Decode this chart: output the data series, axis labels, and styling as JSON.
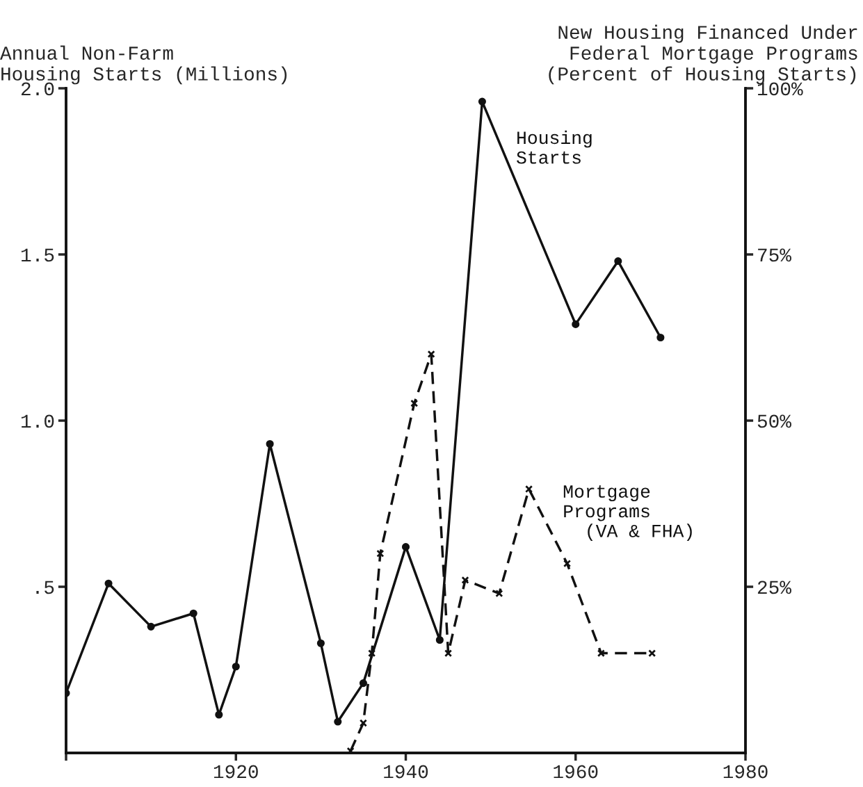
{
  "chart_data": {
    "type": "line",
    "ylabel": "Annual Non-Farm\nHousing Starts (Millions)",
    "y2label": "New Housing Financed Under\nFederal Mortgage Programs\n(Percent of Housing Starts)",
    "xlim": [
      1900,
      1980
    ],
    "xticks": [
      {
        "value": 1900,
        "label": null
      },
      1920,
      1940,
      1960,
      1980
    ],
    "ylim": [
      0,
      2.0
    ],
    "yticks": [
      {
        "value": 0.5,
        "label": ".5"
      },
      {
        "value": 1.0,
        "label": "1.0"
      },
      {
        "value": 1.5,
        "label": "1.5"
      },
      {
        "value": 2.0,
        "label": "2.0"
      }
    ],
    "y2lim": [
      0,
      100
    ],
    "y2ticks": [
      {
        "value": 25,
        "label": "25%"
      },
      {
        "value": 50,
        "label": "50%"
      },
      {
        "value": 75,
        "label": "75%"
      },
      {
        "value": 100,
        "label": "100%"
      }
    ],
    "grid": false,
    "legend": false,
    "series": [
      {
        "name": "Housing\nStarts",
        "color": "#111111",
        "marker": "circle",
        "line_style": "solid",
        "x": [
          1900,
          1905,
          1910,
          1915,
          1918,
          1920,
          1924,
          1930,
          1932,
          1935,
          1940,
          1944,
          1949,
          1960,
          1965,
          1970
        ],
        "values": [
          0.18,
          0.51,
          0.38,
          0.42,
          0.115,
          0.26,
          0.93,
          0.33,
          0.094,
          0.21,
          0.62,
          0.34,
          1.96,
          1.29,
          1.48,
          1.25
        ]
      },
      {
        "name": "Mortgage\nPrograms\n  (VA & FHA)",
        "color": "#111111",
        "marker": "cross",
        "line_style": "dashed",
        "axis": "y2",
        "x": [
          1933.5,
          1935,
          1936,
          1937,
          1941,
          1943,
          1945,
          1947,
          1951,
          1954.5,
          1959,
          1963,
          1969
        ],
        "values": [
          0.3,
          4.5,
          15,
          30,
          52.6,
          60,
          15,
          26,
          24,
          39.7,
          28.5,
          15,
          15
        ]
      }
    ]
  }
}
